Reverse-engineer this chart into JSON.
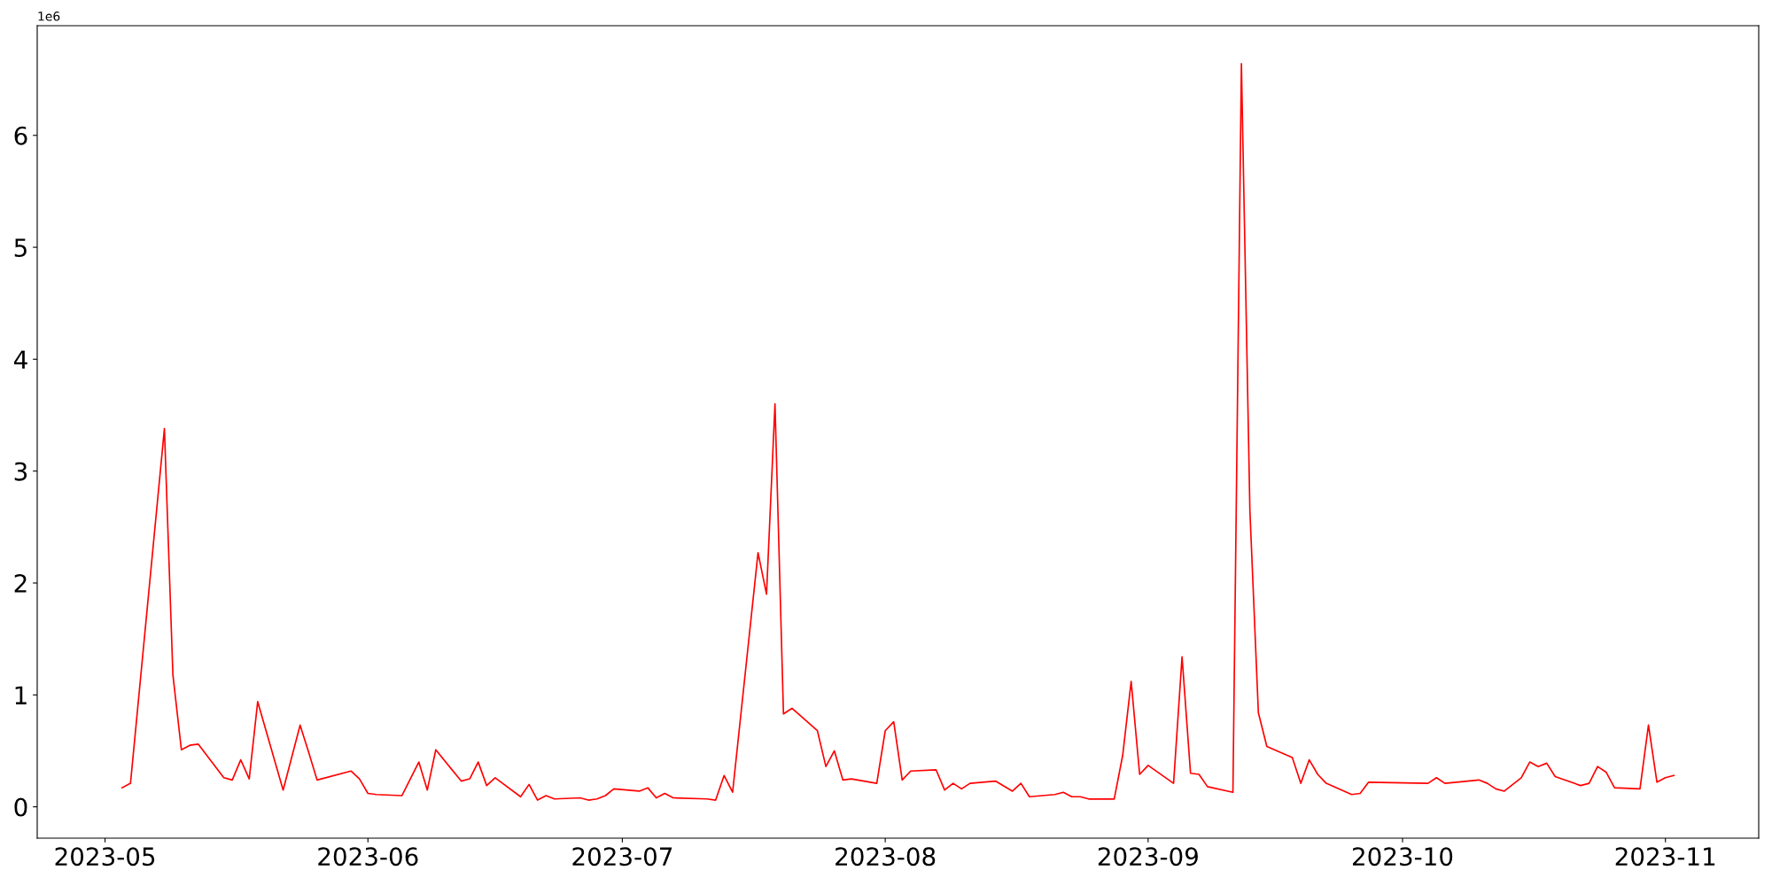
{
  "chart_data": {
    "type": "line",
    "x": [
      "2023-05-03",
      "2023-05-04",
      "2023-05-08",
      "2023-05-09",
      "2023-05-10",
      "2023-05-11",
      "2023-05-12",
      "2023-05-15",
      "2023-05-16",
      "2023-05-17",
      "2023-05-18",
      "2023-05-19",
      "2023-05-22",
      "2023-05-24",
      "2023-05-25",
      "2023-05-26",
      "2023-05-30",
      "2023-05-31",
      "2023-06-01",
      "2023-06-02",
      "2023-06-05",
      "2023-06-07",
      "2023-06-08",
      "2023-06-09",
      "2023-06-12",
      "2023-06-13",
      "2023-06-14",
      "2023-06-15",
      "2023-06-16",
      "2023-06-19",
      "2023-06-20",
      "2023-06-21",
      "2023-06-22",
      "2023-06-23",
      "2023-06-26",
      "2023-06-27",
      "2023-06-28",
      "2023-06-29",
      "2023-06-30",
      "2023-07-03",
      "2023-07-04",
      "2023-07-05",
      "2023-07-06",
      "2023-07-07",
      "2023-07-11",
      "2023-07-12",
      "2023-07-13",
      "2023-07-14",
      "2023-07-17",
      "2023-07-18",
      "2023-07-19",
      "2023-07-20",
      "2023-07-21",
      "2023-07-24",
      "2023-07-25",
      "2023-07-26",
      "2023-07-27",
      "2023-07-28",
      "2023-07-31",
      "2023-08-01",
      "2023-08-02",
      "2023-08-03",
      "2023-08-04",
      "2023-08-07",
      "2023-08-08",
      "2023-08-09",
      "2023-08-10",
      "2023-08-11",
      "2023-08-14",
      "2023-08-16",
      "2023-08-17",
      "2023-08-18",
      "2023-08-21",
      "2023-08-22",
      "2023-08-23",
      "2023-08-24",
      "2023-08-25",
      "2023-08-28",
      "2023-08-29",
      "2023-08-30",
      "2023-08-31",
      "2023-09-01",
      "2023-09-04",
      "2023-09-05",
      "2023-09-06",
      "2023-09-07",
      "2023-09-08",
      "2023-09-11",
      "2023-09-12",
      "2023-09-13",
      "2023-09-14",
      "2023-09-15",
      "2023-09-18",
      "2023-09-19",
      "2023-09-20",
      "2023-09-21",
      "2023-09-22",
      "2023-09-25",
      "2023-09-26",
      "2023-09-27",
      "2023-10-04",
      "2023-10-05",
      "2023-10-06",
      "2023-10-10",
      "2023-10-11",
      "2023-10-12",
      "2023-10-13",
      "2023-10-15",
      "2023-10-16",
      "2023-10-17",
      "2023-10-18",
      "2023-10-19",
      "2023-10-22",
      "2023-10-23",
      "2023-10-24",
      "2023-10-25",
      "2023-10-26",
      "2023-10-29",
      "2023-10-30",
      "2023-10-31",
      "2023-11-01",
      "2023-11-02"
    ],
    "series": [
      {
        "color": "#ff0000",
        "values": [
          0.17,
          0.21,
          3.38,
          1.18,
          0.51,
          0.55,
          0.56,
          0.26,
          0.24,
          0.42,
          0.25,
          0.94,
          0.15,
          0.73,
          0.49,
          0.24,
          0.32,
          0.25,
          0.12,
          0.11,
          0.1,
          0.4,
          0.15,
          0.51,
          0.23,
          0.25,
          0.4,
          0.19,
          0.26,
          0.09,
          0.2,
          0.06,
          0.1,
          0.07,
          0.08,
          0.06,
          0.07,
          0.1,
          0.16,
          0.14,
          0.17,
          0.08,
          0.12,
          0.08,
          0.07,
          0.06,
          0.28,
          0.13,
          2.27,
          1.9,
          3.6,
          0.83,
          0.88,
          0.68,
          0.36,
          0.5,
          0.24,
          0.25,
          0.21,
          0.68,
          0.76,
          0.24,
          0.32,
          0.33,
          0.15,
          0.21,
          0.16,
          0.21,
          0.23,
          0.14,
          0.21,
          0.09,
          0.11,
          0.13,
          0.09,
          0.09,
          0.07,
          0.07,
          0.46,
          1.12,
          0.29,
          0.37,
          0.21,
          1.34,
          0.3,
          0.29,
          0.18,
          0.13,
          6.64,
          2.65,
          0.84,
          0.54,
          0.44,
          0.21,
          0.42,
          0.29,
          0.21,
          0.11,
          0.12,
          0.22,
          0.21,
          0.26,
          0.21,
          0.24,
          0.21,
          0.16,
          0.14,
          0.26,
          0.4,
          0.36,
          0.39,
          0.27,
          0.19,
          0.21,
          0.36,
          0.31,
          0.17,
          0.16,
          0.73,
          0.22,
          0.26,
          0.28
        ]
      }
    ],
    "xlim": [
      "2023-04-23",
      "2023-11-12"
    ],
    "xticks": [
      {
        "value": "2023-05-01",
        "label": "2023-05"
      },
      {
        "value": "2023-06-01",
        "label": "2023-06"
      },
      {
        "value": "2023-07-01",
        "label": "2023-07"
      },
      {
        "value": "2023-08-01",
        "label": "2023-08"
      },
      {
        "value": "2023-09-01",
        "label": "2023-09"
      },
      {
        "value": "2023-10-01",
        "label": "2023-10"
      },
      {
        "value": "2023-11-01",
        "label": "2023-11"
      }
    ],
    "ylim": [
      -0.28,
      6.98
    ],
    "yticks": [
      0,
      1,
      2,
      3,
      4,
      5,
      6
    ],
    "annotations": [
      "1e6"
    ],
    "grid": false,
    "legend": false,
    "marker": "none",
    "line_style": "solid"
  }
}
